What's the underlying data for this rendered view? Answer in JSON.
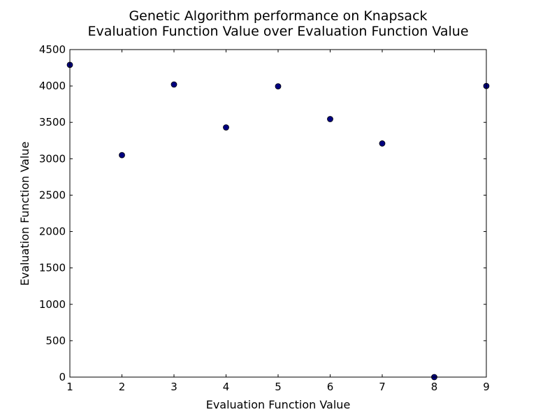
{
  "chart_data": {
    "type": "scatter",
    "title_lines": [
      "Genetic Algorithm performance on Knapsack",
      "Evaluation Function Value over Evaluation Function Value"
    ],
    "xlabel": "Evaluation Function Value",
    "ylabel": "Evaluation Function Value",
    "xlim": [
      1,
      9
    ],
    "ylim": [
      0,
      4500
    ],
    "xticks": [
      1,
      2,
      3,
      4,
      5,
      6,
      7,
      8,
      9
    ],
    "yticks": [
      0,
      500,
      1000,
      1500,
      2000,
      2500,
      3000,
      3500,
      4000,
      4500
    ],
    "grid": false,
    "series": [
      {
        "name": "points",
        "color": "#000080",
        "x": [
          1,
          2,
          3,
          4,
          5,
          6,
          7,
          8,
          9
        ],
        "y": [
          4290,
          3050,
          4020,
          3430,
          3995,
          3545,
          3210,
          0,
          4000
        ]
      }
    ]
  }
}
